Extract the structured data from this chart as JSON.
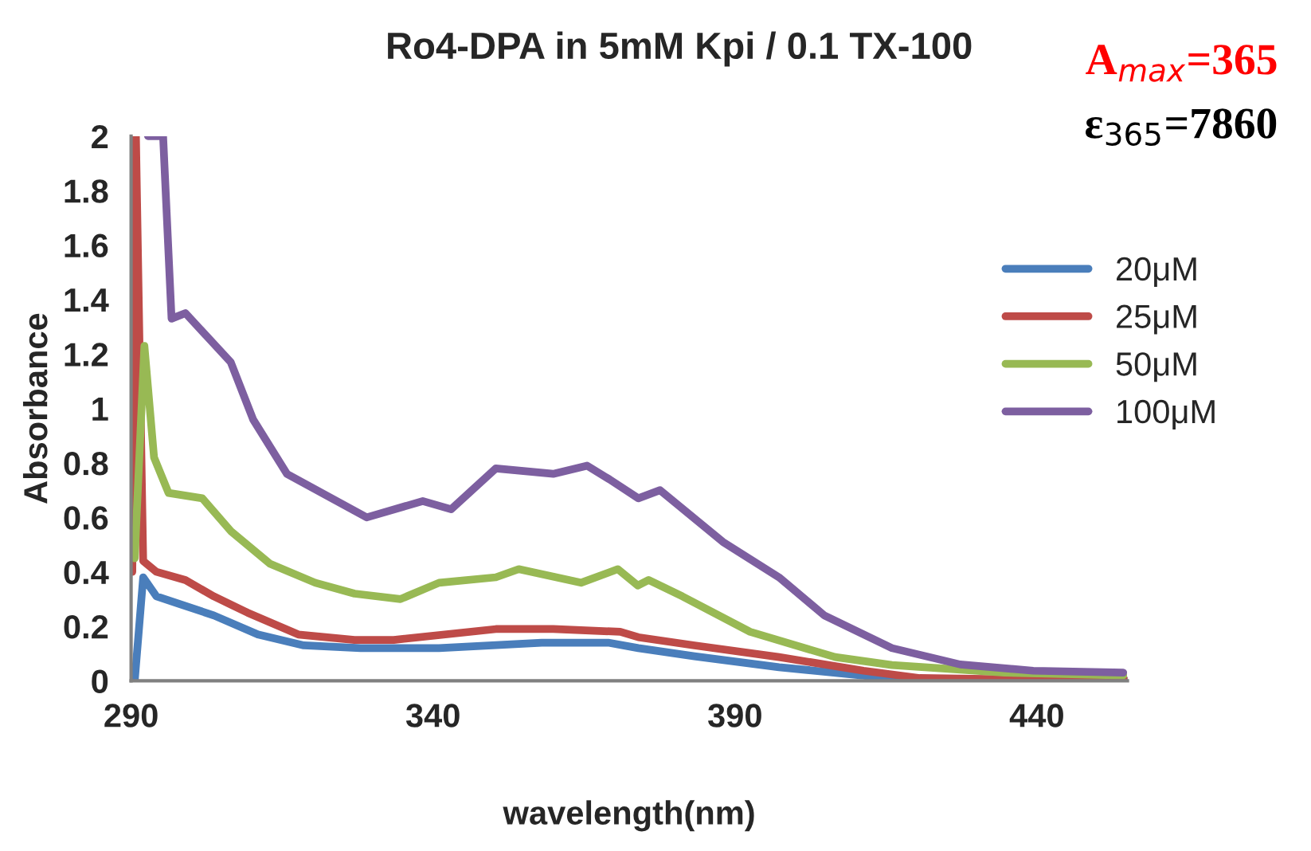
{
  "chart_data": {
    "type": "line",
    "title": "Ro4-DPA in 5mM Kpi / 0.1 TX-100",
    "xlabel": "wavelength(nm)",
    "ylabel": "Absorbance",
    "annotations": [
      "A$_{max}$=365",
      "ε$_{365}$=7860"
    ],
    "xlim": [
      290,
      455
    ],
    "xticks": [
      290,
      340,
      390,
      440
    ],
    "ylim": [
      0,
      2
    ],
    "yticks": [
      0,
      {
        "value": 0.2,
        "label": "0.2"
      },
      {
        "value": 0.4,
        "label": "0.4"
      },
      {
        "value": 0.6,
        "label": "0.6"
      },
      {
        "value": 0.8,
        "label": "0.8"
      },
      1,
      {
        "value": 1.2,
        "label": "1.2"
      },
      {
        "value": 1.4,
        "label": "1.4"
      },
      {
        "value": 1.6,
        "label": "1.6"
      },
      {
        "value": 1.8,
        "label": "1.8"
      },
      2
    ],
    "grid": false,
    "legend": "right",
    "marker": "none",
    "line_style": "solid",
    "series": [
      {
        "name": "20μM",
        "color": "#4a7ebb",
        "x": [
          290.6,
          292,
          294.2,
          303.7,
          311,
          318.6,
          328,
          341,
          358,
          369,
          374,
          383.3,
          397.3,
          411,
          417,
          455
        ],
        "values": [
          0,
          0.38,
          0.31,
          0.24,
          0.17,
          0.13,
          0.12,
          0.12,
          0.14,
          0.14,
          0.12,
          0.09,
          0.05,
          0.02,
          0,
          0
        ]
      },
      {
        "name": "25μM",
        "color": "#be4b48",
        "x": [
          290.2,
          290.8,
          292,
          294.2,
          299,
          303.7,
          309.3,
          317.7,
          327,
          333.5,
          350.4,
          359.9,
          371,
          374,
          383.3,
          397.3,
          411.3,
          420.6,
          455
        ],
        "values": [
          0.4,
          2,
          0.44,
          0.4,
          0.37,
          0.31,
          0.25,
          0.17,
          0.15,
          0.15,
          0.19,
          0.19,
          0.18,
          0.16,
          0.13,
          0.087,
          0.037,
          0.01,
          0
        ]
      },
      {
        "name": "50μM",
        "color": "#98b954",
        "x": [
          290.6,
          292.2,
          293.8,
          296.2,
          301.8,
          306.5,
          313,
          320.5,
          327,
          334.6,
          341,
          350.4,
          354.2,
          364.5,
          370.6,
          373.9,
          375.7,
          381.3,
          392.5,
          406.6,
          416,
          434.7,
          454.3
        ],
        "values": [
          0.45,
          1.23,
          0.82,
          0.69,
          0.67,
          0.55,
          0.43,
          0.36,
          0.32,
          0.3,
          0.36,
          0.38,
          0.41,
          0.36,
          0.41,
          0.35,
          0.37,
          0.31,
          0.18,
          0.087,
          0.058,
          0.03,
          0.02
        ]
      },
      {
        "name": "100μM",
        "color": "#7d5fa0",
        "x": [
          292.8,
          295.3,
          296.7,
          299,
          306.5,
          310.2,
          315.8,
          329,
          338.3,
          343,
          350.4,
          359.9,
          365.5,
          369.2,
          374,
          377.6,
          388,
          397.3,
          404.8,
          416,
          427.3,
          439.4,
          454.3
        ],
        "values": [
          2,
          2,
          1.33,
          1.35,
          1.17,
          0.96,
          0.76,
          0.6,
          0.66,
          0.63,
          0.78,
          0.76,
          0.79,
          0.74,
          0.67,
          0.7,
          0.51,
          0.38,
          0.24,
          0.12,
          0.06,
          0.037,
          0.03
        ]
      }
    ]
  }
}
